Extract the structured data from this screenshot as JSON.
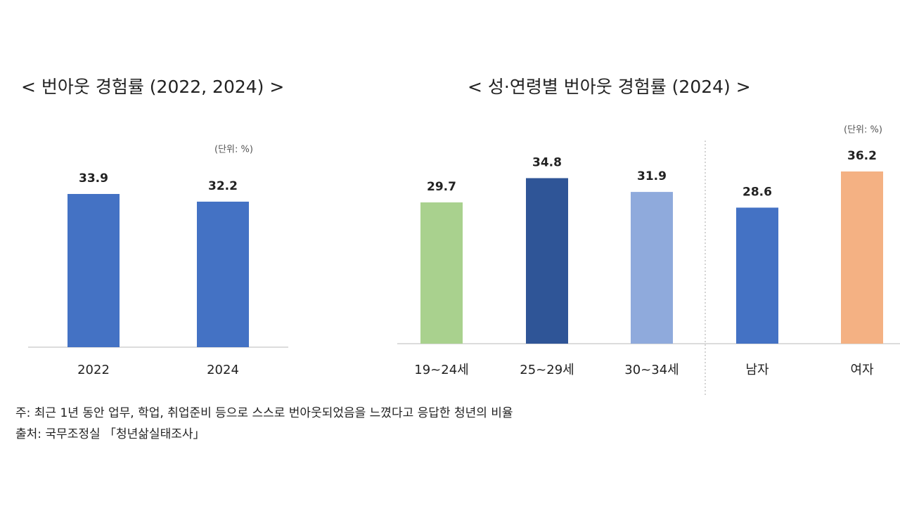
{
  "chart_data": [
    {
      "type": "bar",
      "title": "< 번아웃 경험률 (2022, 2024) >",
      "unit": "(단위: %)",
      "categories": [
        "2022",
        "2024"
      ],
      "values": [
        33.9,
        32.2
      ],
      "colors": [
        "#4472c4",
        "#4472c4"
      ]
    },
    {
      "type": "bar",
      "title": "< 성·연령별 번아웃 경험률 (2024) >",
      "unit": "(단위: %)",
      "categories": [
        "19~24세",
        "25~29세",
        "30~34세",
        "남자",
        "여자"
      ],
      "values": [
        29.7,
        34.8,
        31.9,
        28.6,
        36.2
      ],
      "colors": [
        "#a9d18e",
        "#2f5597",
        "#8faadc",
        "#4472c4",
        "#f4b183"
      ]
    }
  ],
  "notes": [
    "주: 최근 1년 동안 업무, 학업, 취업준비 등으로 스스로 번아웃되었음을 느꼈다고 응답한 청년의 비율",
    "출처: 국무조정실 「청년삶실태조사」"
  ]
}
